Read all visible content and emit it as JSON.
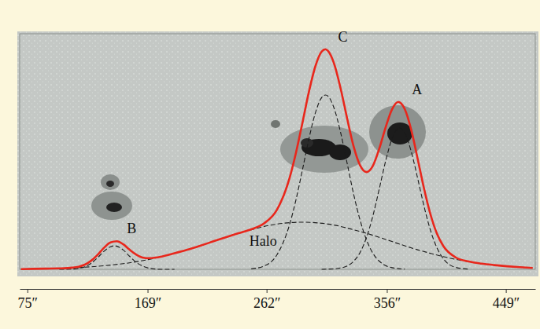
{
  "chart_data": {
    "type": "line",
    "xlim": [
      69,
      472
    ],
    "xticks": [
      {
        "value": 75,
        "label": "75″"
      },
      {
        "value": 169,
        "label": "169″"
      },
      {
        "value": 262,
        "label": "262″"
      },
      {
        "value": 356,
        "label": "356″"
      },
      {
        "value": 449,
        "label": "449″"
      }
    ],
    "ylim": [
      0,
      100
    ],
    "tick_labels": "x",
    "series": [
      {
        "name": "B",
        "color": "#1a1a1a",
        "line_style": "dashed",
        "x": [
          100,
          110,
          115,
          120,
          125,
          130,
          135,
          140,
          143,
          145,
          150,
          155,
          160,
          165,
          170,
          180,
          190
        ],
        "values": [
          0.0,
          0.1,
          0.4,
          1.1,
          2.6,
          5.0,
          7.7,
          9.6,
          10.0,
          9.8,
          8.2,
          5.5,
          3.0,
          1.4,
          0.5,
          0.0,
          0.0
        ]
      },
      {
        "name": "Halo",
        "color": "#1a1a1a",
        "line_style": "dashed",
        "x": [
          70,
          80,
          90,
          100,
          110,
          120,
          130,
          140,
          150,
          160,
          170,
          180,
          190,
          200,
          210,
          220,
          230,
          240,
          250,
          260,
          270,
          280,
          290,
          300,
          310,
          320,
          330,
          340,
          350,
          360,
          370,
          380,
          390,
          400,
          410,
          420,
          430,
          440,
          450,
          460,
          470
        ],
        "values": [
          0.1,
          0.2,
          0.3,
          0.4,
          0.6,
          0.9,
          1.3,
          1.8,
          2.4,
          3.2,
          4.2,
          5.4,
          6.8,
          8.3,
          10.0,
          11.8,
          13.6,
          15.3,
          16.8,
          18.2,
          19.2,
          19.8,
          20.0,
          19.8,
          19.2,
          18.2,
          16.8,
          15.3,
          13.6,
          11.8,
          10.0,
          8.3,
          6.8,
          5.4,
          4.2,
          3.2,
          2.4,
          1.8,
          1.3,
          0.9,
          0.6
        ]
      },
      {
        "name": "C",
        "color": "#1a1a1a",
        "line_style": "dashed",
        "x": [
          250,
          260,
          270,
          280,
          285,
          290,
          295,
          300,
          305,
          308,
          310,
          315,
          320,
          325,
          330,
          335,
          340,
          345,
          350,
          355,
          360,
          365,
          370
        ],
        "values": [
          0.2,
          1.4,
          6.1,
          19.1,
          29.6,
          42.2,
          55.2,
          66.2,
          72.9,
          74.0,
          73.5,
          68.0,
          57.7,
          44.9,
          32.0,
          21.0,
          12.6,
          6.9,
          3.5,
          1.6,
          0.7,
          0.3,
          0.1
        ]
      },
      {
        "name": "A",
        "color": "#1a1a1a",
        "line_style": "dashed",
        "x": [
          305,
          310,
          315,
          320,
          325,
          330,
          335,
          340,
          345,
          350,
          355,
          360,
          365,
          366,
          370,
          375,
          380,
          385,
          390,
          395,
          400,
          410,
          420
        ],
        "values": [
          0.0,
          0.1,
          0.2,
          0.6,
          1.4,
          3.4,
          7.1,
          13.4,
          22.5,
          34.0,
          45.9,
          55.4,
          59.9,
          60.0,
          57.9,
          50.1,
          38.8,
          26.9,
          16.7,
          9.3,
          4.6,
          0.8,
          0.1
        ]
      },
      {
        "color": "#e8271c",
        "line_style": "solid",
        "x": [
          70,
          80,
          90,
          100,
          110,
          115,
          120,
          125,
          130,
          135,
          140,
          145,
          150,
          155,
          160,
          165,
          170,
          180,
          190,
          200,
          210,
          220,
          230,
          240,
          250,
          260,
          270,
          280,
          285,
          290,
          295,
          300,
          305,
          308,
          310,
          315,
          320,
          325,
          330,
          335,
          340,
          345,
          350,
          355,
          360,
          365,
          366,
          370,
          375,
          380,
          385,
          390,
          395,
          400,
          410,
          420,
          430,
          440,
          450,
          460,
          470
        ],
        "values": [
          0.1,
          0.2,
          0.3,
          0.4,
          0.7,
          1.1,
          2.0,
          3.7,
          6.2,
          9.2,
          11.4,
          11.9,
          10.6,
          8.3,
          6.3,
          5.0,
          4.7,
          5.4,
          6.8,
          8.3,
          10.0,
          11.8,
          13.6,
          15.3,
          17.0,
          19.5,
          25.2,
          38.9,
          49.6,
          62.2,
          75.2,
          86.0,
          92.4,
          93.4,
          92.7,
          86.9,
          76.4,
          63.9,
          52.2,
          44.2,
          41.3,
          43.9,
          51.1,
          60.2,
          67.9,
          71.1,
          70.9,
          68.0,
          59.3,
          47.1,
          34.4,
          23.5,
          15.3,
          10.0,
          5.0,
          3.3,
          2.4,
          1.8,
          1.3,
          0.9,
          0.6
        ]
      }
    ]
  }
}
